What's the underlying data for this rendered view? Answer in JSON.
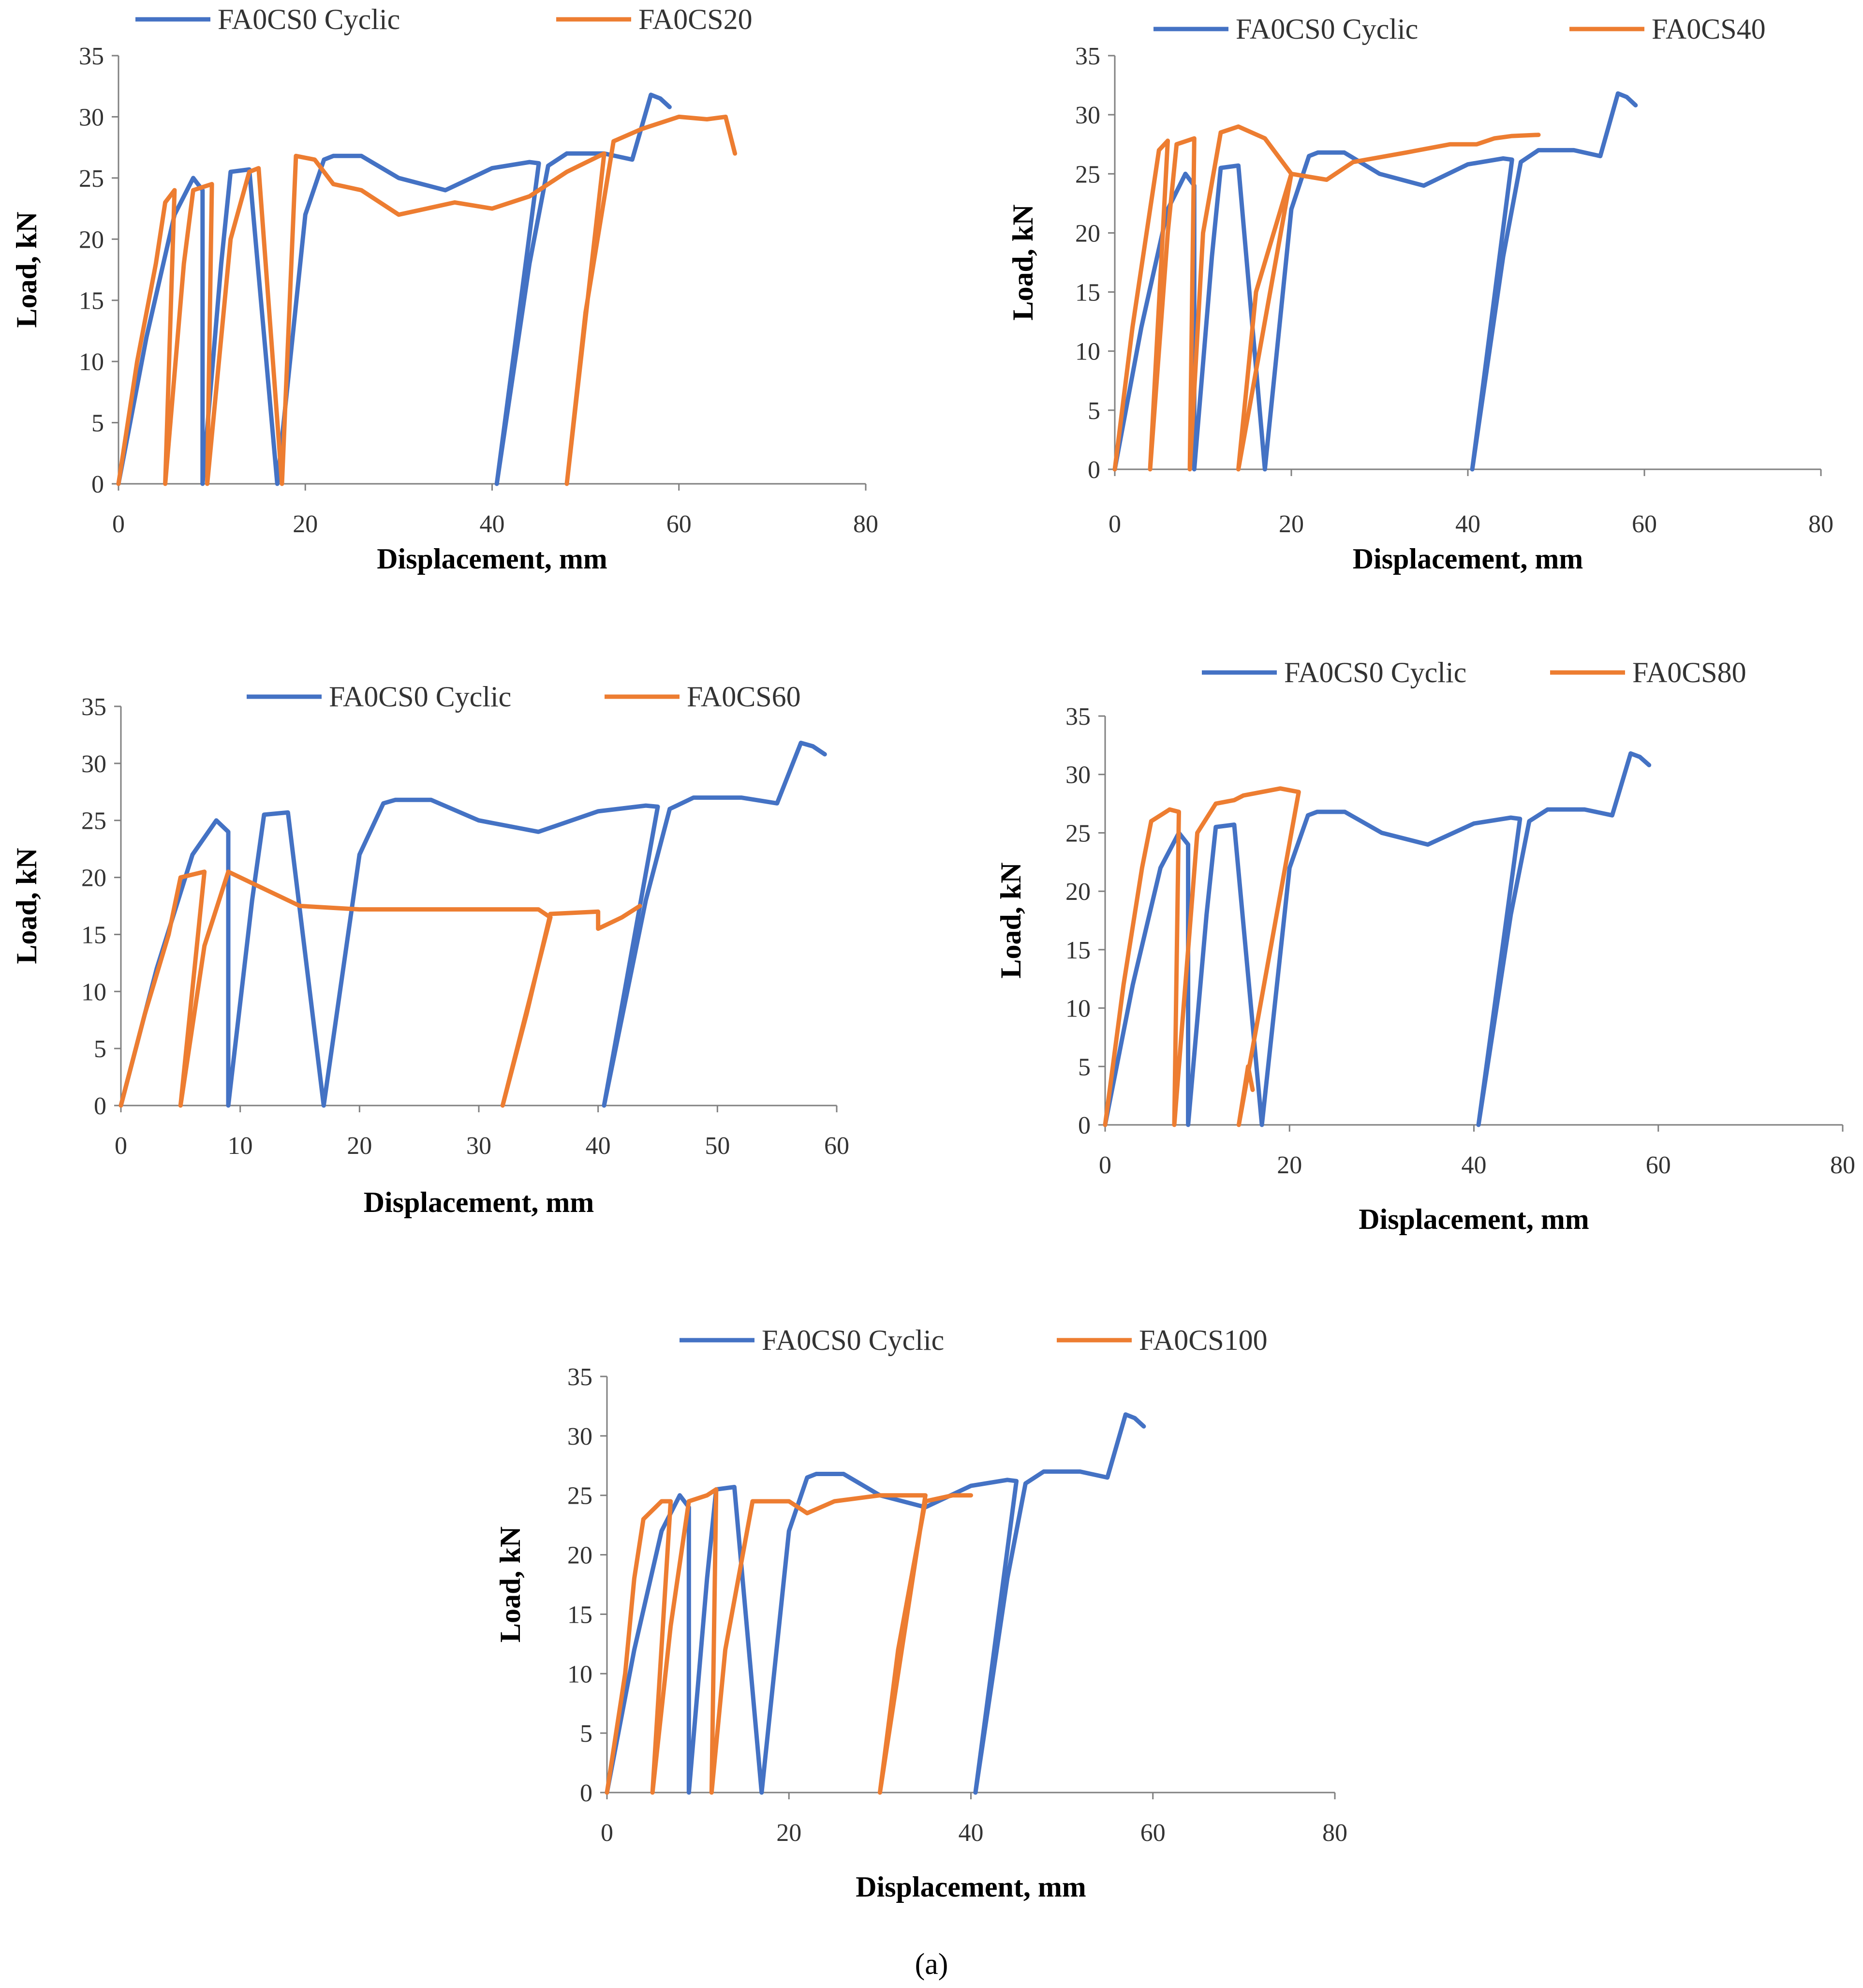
{
  "figure_caption": "(a)",
  "colors": {
    "reference": "#4472C4",
    "specimen": "#ED7D31",
    "axis": "#808080"
  },
  "chart_data": [
    {
      "type": "line",
      "title": "",
      "xlabel": "Displacement, mm",
      "ylabel": "Load, kN",
      "xlim": [
        0,
        80
      ],
      "ylim": [
        0,
        35
      ],
      "x_ticks": [
        "0",
        "20",
        "40",
        "60",
        "80"
      ],
      "y_ticks": [
        "0",
        "5",
        "10",
        "15",
        "20",
        "25",
        "30",
        "35"
      ],
      "legend_position": "top",
      "series": [
        {
          "name": "FA0CS0 Cyclic",
          "color": "#4472C4",
          "points": [
            [
              0,
              0
            ],
            [
              3,
              12
            ],
            [
              6,
              22
            ],
            [
              8,
              25
            ],
            [
              9,
              24
            ],
            [
              9,
              0
            ],
            [
              11,
              18
            ],
            [
              12,
              25.5
            ],
            [
              14,
              25.7
            ],
            [
              17,
              0
            ],
            [
              20,
              22
            ],
            [
              22,
              26.5
            ],
            [
              23,
              26.8
            ],
            [
              26,
              26.8
            ],
            [
              30,
              25
            ],
            [
              35,
              24
            ],
            [
              40,
              25.8
            ],
            [
              44,
              26.3
            ],
            [
              45,
              26.2
            ],
            [
              40.5,
              0
            ],
            [
              44,
              18
            ],
            [
              46,
              26
            ],
            [
              48,
              27
            ],
            [
              52,
              27
            ],
            [
              55,
              26.5
            ],
            [
              57,
              31.8
            ],
            [
              58,
              31.5
            ],
            [
              59,
              30.8
            ]
          ]
        },
        {
          "name": "FA0CS20",
          "color": "#ED7D31",
          "points": [
            [
              0,
              0
            ],
            [
              2,
              10
            ],
            [
              4,
              18
            ],
            [
              5,
              23
            ],
            [
              6,
              24
            ],
            [
              5,
              0
            ],
            [
              7,
              18
            ],
            [
              8,
              24
            ],
            [
              10,
              24.5
            ],
            [
              9.5,
              0
            ],
            [
              12,
              20
            ],
            [
              14,
              25.5
            ],
            [
              15,
              25.8
            ],
            [
              17.5,
              0
            ],
            [
              19,
              26.8
            ],
            [
              21,
              26.5
            ],
            [
              23,
              24.5
            ],
            [
              26,
              24
            ],
            [
              30,
              22
            ],
            [
              33,
              22.5
            ],
            [
              36,
              23
            ],
            [
              40,
              22.5
            ],
            [
              44,
              23.5
            ],
            [
              48,
              25.5
            ],
            [
              52,
              27
            ],
            [
              48,
              0
            ],
            [
              50,
              14
            ],
            [
              53,
              28
            ],
            [
              56,
              29
            ],
            [
              60,
              30
            ],
            [
              63,
              29.8
            ],
            [
              65,
              30
            ],
            [
              66,
              27
            ]
          ]
        },
        {
          "name": "FA0CS40",
          "color": "#ED7D31",
          "points": [
            [
              0,
              0
            ],
            [
              2,
              12
            ],
            [
              4,
              22
            ],
            [
              5,
              27
            ],
            [
              6,
              27.8
            ],
            [
              4,
              0
            ],
            [
              6,
              20
            ],
            [
              7,
              27.5
            ],
            [
              9,
              28
            ],
            [
              8.5,
              0
            ],
            [
              10,
              20
            ],
            [
              12,
              28.5
            ],
            [
              14,
              29
            ],
            [
              17,
              28
            ],
            [
              19,
              26
            ],
            [
              20,
              25
            ],
            [
              14,
              0
            ],
            [
              16,
              15
            ],
            [
              20,
              25
            ],
            [
              24,
              24.5
            ],
            [
              27,
              26
            ],
            [
              33,
              26.8
            ],
            [
              38,
              27.5
            ],
            [
              41,
              27.5
            ],
            [
              43,
              28
            ],
            [
              45,
              28.2
            ],
            [
              48,
              28.3
            ]
          ]
        },
        {
          "name": "FA0CS60",
          "color": "#ED7D31",
          "points": [
            [
              0,
              0
            ],
            [
              2,
              8
            ],
            [
              4,
              15
            ],
            [
              5,
              20
            ],
            [
              7,
              20.5
            ],
            [
              5,
              0
            ],
            [
              7,
              14
            ],
            [
              9,
              20.5
            ],
            [
              11,
              19.5
            ],
            [
              15,
              17.5
            ],
            [
              20,
              17.2
            ],
            [
              25,
              17.2
            ],
            [
              30,
              17.2
            ],
            [
              35,
              17.2
            ],
            [
              36,
              16.5
            ],
            [
              32,
              0
            ],
            [
              34,
              8
            ],
            [
              36,
              16.8
            ],
            [
              40,
              17
            ],
            [
              40,
              15.5
            ],
            [
              42,
              16.5
            ],
            [
              43.5,
              17.5
            ]
          ]
        },
        {
          "name": "FA0CS80",
          "color": "#ED7D31",
          "points": [
            [
              0,
              0
            ],
            [
              2,
              12
            ],
            [
              4,
              22
            ],
            [
              5,
              26
            ],
            [
              7,
              27
            ],
            [
              8,
              26.8
            ],
            [
              7.5,
              0
            ],
            [
              9,
              15
            ],
            [
              10,
              25
            ],
            [
              12,
              27.5
            ],
            [
              14,
              27.8
            ],
            [
              15,
              28.2
            ],
            [
              19,
              28.8
            ],
            [
              21,
              28.5
            ],
            [
              14.5,
              0
            ],
            [
              15.5,
              5
            ],
            [
              16,
              3
            ]
          ]
        },
        {
          "name": "FA0CS100",
          "color": "#ED7D31",
          "points": [
            [
              0,
              0
            ],
            [
              2,
              10
            ],
            [
              3,
              18
            ],
            [
              4,
              23
            ],
            [
              6,
              24.5
            ],
            [
              7,
              24.5
            ],
            [
              5,
              0
            ],
            [
              7,
              14
            ],
            [
              9,
              24.5
            ],
            [
              11,
              25
            ],
            [
              12,
              25.5
            ],
            [
              11.5,
              0
            ],
            [
              13,
              12
            ],
            [
              16,
              24.5
            ],
            [
              20,
              24.5
            ],
            [
              22,
              23.5
            ],
            [
              25,
              24.5
            ],
            [
              30,
              25
            ],
            [
              35,
              25
            ],
            [
              30,
              0
            ],
            [
              32,
              12
            ],
            [
              35,
              24.5
            ],
            [
              38,
              25
            ],
            [
              40,
              25
            ]
          ]
        }
      ]
    }
  ]
}
